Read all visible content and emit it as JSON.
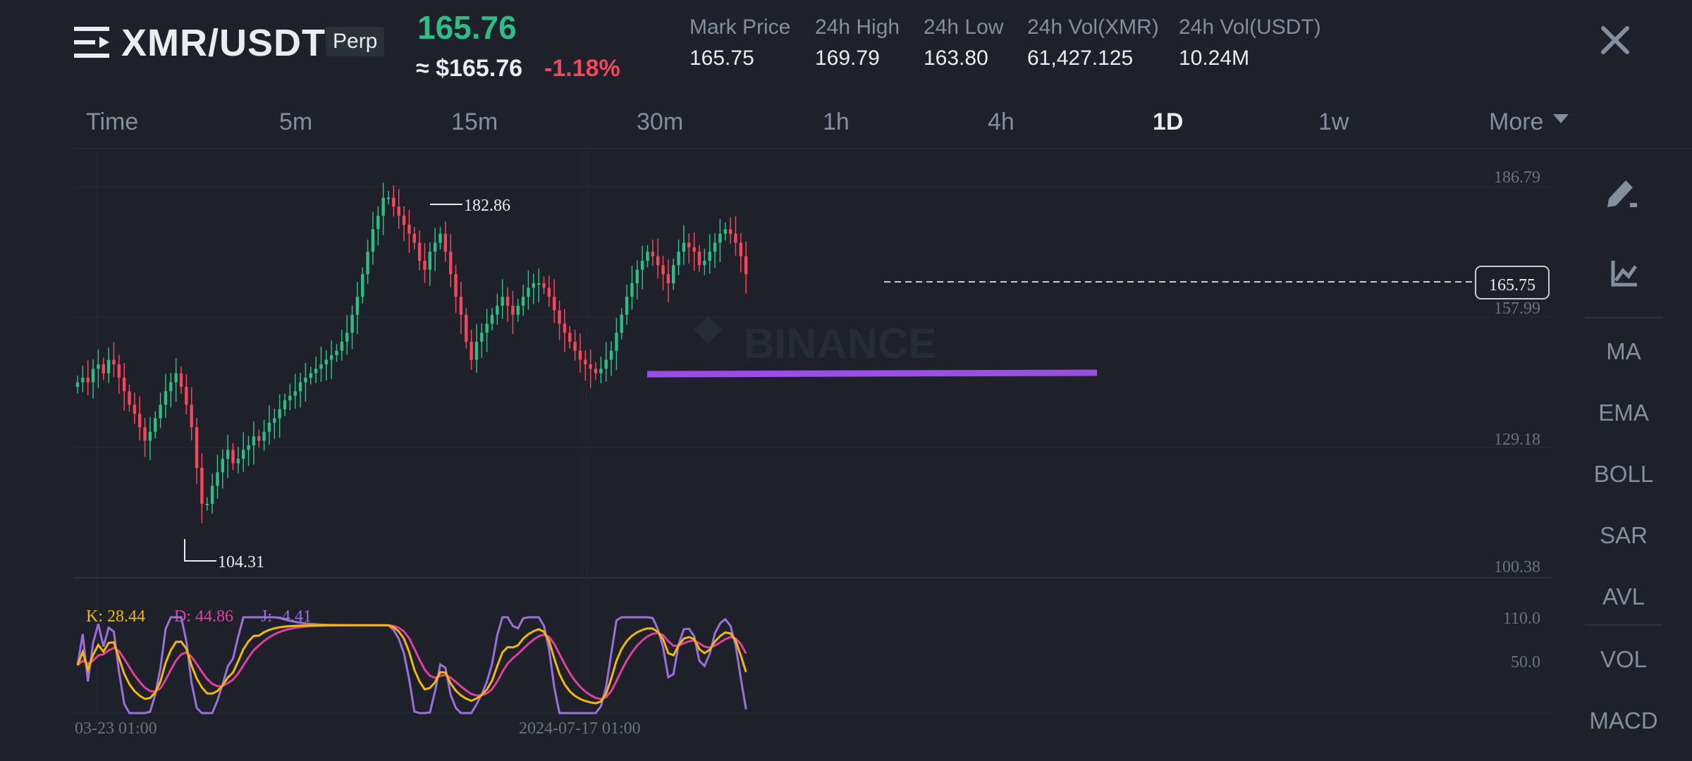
{
  "header": {
    "pair": "XMR/USDT",
    "badge": "Perp",
    "last_price": "165.76",
    "usd_price": "≈ $165.76",
    "change": "-1.18%",
    "stats": [
      {
        "label": "Mark Price",
        "value": "165.75"
      },
      {
        "label": "24h High",
        "value": "169.79"
      },
      {
        "label": "24h Low",
        "value": "163.80"
      },
      {
        "label": "24h Vol(XMR)",
        "value": "61,427.125"
      },
      {
        "label": "24h Vol(USDT)",
        "value": "10.24M"
      }
    ]
  },
  "intervals": [
    "Time",
    "5m",
    "15m",
    "30m",
    "1h",
    "4h",
    "1D",
    "1w",
    "More"
  ],
  "active_interval": "1D",
  "side_tools": [
    "MA",
    "EMA",
    "BOLL",
    "SAR",
    "AVL",
    "VOL",
    "MACD"
  ],
  "icons": {
    "menu": "menu-icon",
    "close": "close-icon",
    "draw": "pencil-icon",
    "indicator": "chart-line-icon",
    "more": "caret-down-icon"
  },
  "colors": {
    "up": "#2ebd85",
    "down": "#f6465d",
    "k": "#f0b90b",
    "d": "#e040a0",
    "j": "#9b6fdc",
    "trendline": "#9b4ee6"
  },
  "chart_data": {
    "type": "candlestick",
    "price_axis": [
      "186.79",
      "157.99",
      "129.18",
      "100.38"
    ],
    "current_price_label": "165.75",
    "current_price": 165.75,
    "high_label": "182.86",
    "low_label": "104.31",
    "watermark": "BINANCE",
    "support_line": 145.5,
    "close_prices": [
      141,
      142,
      141,
      144,
      145,
      143,
      146,
      145,
      142,
      139,
      136,
      134,
      131,
      128,
      130,
      133,
      136,
      139,
      141,
      143,
      140,
      136,
      131,
      122,
      114,
      114,
      118,
      121,
      124,
      126,
      123,
      124,
      126,
      127,
      129,
      128,
      130,
      132,
      133,
      135,
      137,
      138,
      139,
      141,
      142,
      143,
      144,
      145,
      146,
      147,
      148,
      150,
      152,
      156,
      160,
      165,
      170,
      175,
      178,
      182,
      182,
      180,
      178,
      176,
      174,
      172,
      168,
      166,
      170,
      172,
      174,
      170,
      165,
      160,
      156,
      150,
      146,
      150,
      152,
      154,
      156,
      158,
      160,
      158,
      156,
      158,
      160,
      162,
      163,
      163,
      162,
      160,
      157,
      154,
      152,
      150,
      148,
      146,
      145,
      144,
      143,
      144,
      146,
      148,
      152,
      156,
      160,
      163,
      166,
      168,
      170,
      169,
      167,
      165,
      163,
      167,
      170,
      172,
      171,
      170,
      167,
      168,
      170,
      172,
      174,
      175,
      174,
      172,
      169,
      165
    ],
    "oscillator": {
      "name": "KDJ",
      "K": "28.44",
      "D": "44.86",
      "J": "-4.41",
      "axis": [
        "110.0",
        "50.0"
      ]
    },
    "time_labels": [
      "03-23 01:00",
      "2024-07-17 01:00"
    ]
  }
}
